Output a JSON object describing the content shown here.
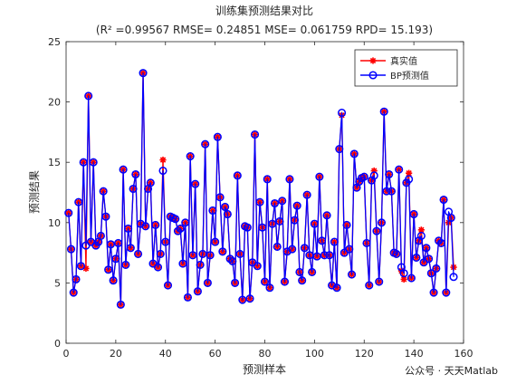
{
  "chart_data": {
    "type": "line",
    "title": "训练集预测结果对比",
    "subtitle": "(R² =0.99567 RMSE= 0.24851 MSE= 0.061759 RPD= 15.193)",
    "xlabel": "预测样本",
    "ylabel": "预测结果",
    "xlim": [
      0,
      160
    ],
    "ylim": [
      0,
      25
    ],
    "xticks": [
      0,
      20,
      40,
      60,
      80,
      100,
      120,
      140,
      160
    ],
    "yticks": [
      0,
      5,
      10,
      15,
      20,
      25
    ],
    "legend_position": "top-right",
    "series": [
      {
        "name": "真实值",
        "color": "#ff0000",
        "marker": "asterisk",
        "values": [
          10.8,
          7.8,
          4.2,
          5.3,
          11.7,
          6.4,
          15,
          6.2,
          20.5,
          8.4,
          15,
          8.1,
          8.4,
          8.9,
          12.6,
          10.5,
          6.1,
          8.2,
          5.2,
          7,
          8.3,
          3.2,
          14.4,
          6.5,
          9.5,
          7.9,
          12.8,
          14,
          7.4,
          9.9,
          22.4,
          9.7,
          12.8,
          13.3,
          6.6,
          9.8,
          6.3,
          7.4,
          15.2,
          8.4,
          4.8,
          10.5,
          10.4,
          10.3,
          9.3,
          9.5,
          6.6,
          10,
          3.8,
          15.5,
          7.3,
          13.2,
          4.3,
          6.5,
          7.4,
          16.5,
          5,
          7.3,
          11,
          8.4,
          17.1,
          12.1,
          7.6,
          11.3,
          10.7,
          7,
          6.8,
          5,
          13.9,
          7.4,
          3.6,
          9.7,
          9.6,
          3.7,
          6.7,
          17.3,
          6.4,
          11.7,
          9.6,
          5.1,
          13.6,
          4.6,
          9.9,
          11.6,
          8,
          10.1,
          11.8,
          5.1,
          7.6,
          13.6,
          7.8,
          10.2,
          11.4,
          5.9,
          5.2,
          7.9,
          12.3,
          7.3,
          5.9,
          9.9,
          7.2,
          13.8,
          8.5,
          7.3,
          10.6,
          7.3,
          4.8,
          8.4,
          4.6,
          16.1,
          18.9,
          7.5,
          9.8,
          7.8,
          5.7,
          15.7,
          12.9,
          13.4,
          13.7,
          13.8,
          8.3,
          4.8,
          13.5,
          14.3,
          9.3,
          5.1,
          10,
          19.2,
          12.6,
          14,
          12.6,
          7.5,
          7.4,
          14.4,
          6,
          5.3,
          13.3,
          14.1,
          5.4,
          10.7,
          7.1,
          8.5,
          9.4,
          6.7,
          7.9,
          7,
          5.8,
          4.2,
          6.2,
          8.5,
          8.3,
          11.9,
          4.2,
          10,
          10.4,
          6.3
        ]
      },
      {
        "name": "BP预测值",
        "color": "#0000ff",
        "marker": "circle",
        "values": [
          10.8,
          7.8,
          4.2,
          5.3,
          11.7,
          6.4,
          15,
          8.1,
          20.5,
          8.4,
          15,
          8.1,
          8.4,
          8.9,
          12.6,
          10.5,
          6.1,
          8.2,
          5.2,
          7,
          8.3,
          3.2,
          14.4,
          6.5,
          9.5,
          7.9,
          12.8,
          14,
          7.4,
          9.9,
          22.4,
          9.7,
          12.8,
          13.3,
          6.6,
          9.8,
          6.3,
          7.4,
          14.3,
          8.4,
          4.8,
          10.5,
          10.4,
          10.3,
          9.3,
          9.5,
          6.6,
          10,
          3.8,
          15.5,
          7.3,
          13.2,
          4.3,
          6.5,
          7.4,
          16.5,
          5,
          7.3,
          11,
          8.4,
          17.1,
          12.1,
          7.6,
          11.3,
          10.7,
          7,
          6.8,
          5,
          13.9,
          7.4,
          3.6,
          9.7,
          9.6,
          3.7,
          6.7,
          17.3,
          6.4,
          11.7,
          9.6,
          5.1,
          13.6,
          4.6,
          9.9,
          11.6,
          8,
          10.1,
          11.8,
          5.1,
          7.6,
          13.6,
          7.8,
          10.2,
          11.4,
          5.9,
          5.2,
          7.9,
          12.3,
          7.3,
          5.9,
          9.9,
          7.2,
          13.8,
          8.5,
          7.3,
          10.6,
          7.3,
          4.8,
          8.4,
          4.6,
          16.1,
          19.1,
          7.5,
          9.8,
          7.8,
          5.7,
          15.7,
          12.9,
          13.4,
          13.7,
          13.8,
          8.3,
          4.8,
          13.5,
          13.9,
          9.3,
          5.1,
          10,
          19.2,
          12.6,
          14,
          12.6,
          7.5,
          7.4,
          14.4,
          6.3,
          5.8,
          13.3,
          13.6,
          5.4,
          10.7,
          7.1,
          8.5,
          8.9,
          6.7,
          7.9,
          7,
          5.8,
          4.2,
          6.2,
          8.5,
          8.3,
          11.9,
          4.2,
          10.9,
          10.4,
          5.5
        ]
      }
    ]
  },
  "watermark": "公众号 · 天天Matlab"
}
